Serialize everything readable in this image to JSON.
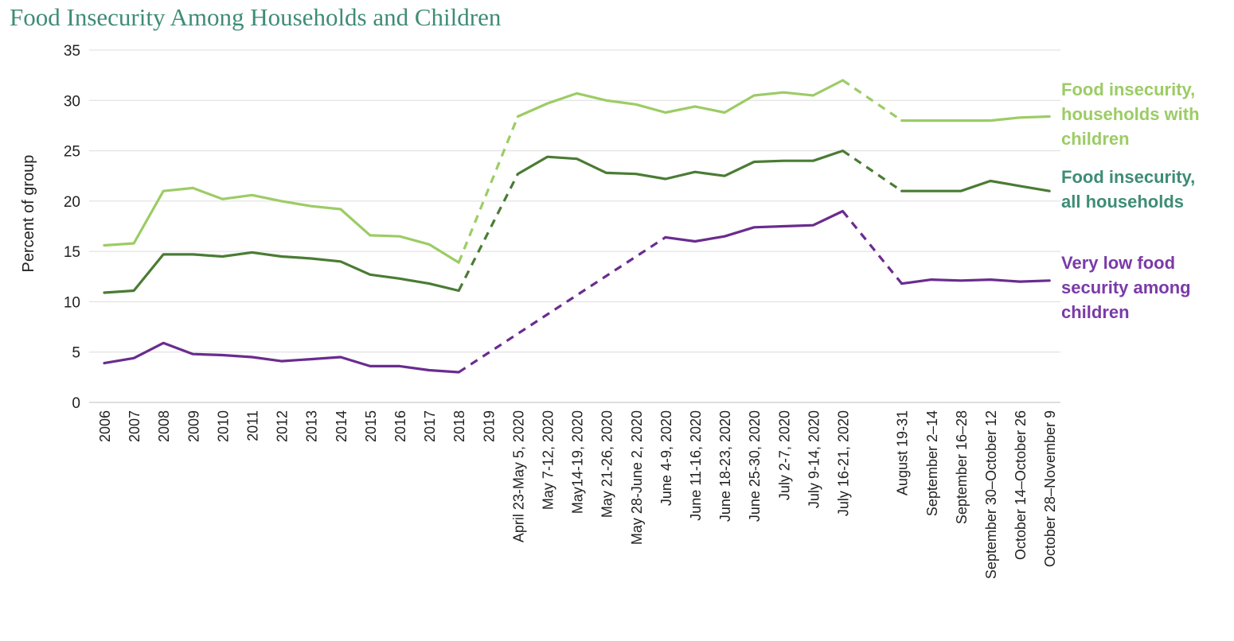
{
  "chart_data": {
    "type": "line",
    "title": "Food Insecurity Among Households and Children",
    "ylabel": "Percent of group",
    "xlabel": "",
    "ylim": [
      0,
      35
    ],
    "yticks": [
      0,
      5,
      10,
      15,
      20,
      25,
      30,
      35
    ],
    "grid": true,
    "legend_placement": "right",
    "categories": [
      "2006",
      "2007",
      "2008",
      "2009",
      "2010",
      "2011",
      "2012",
      "2013",
      "2014",
      "2015",
      "2016",
      "2017",
      "2018",
      "2019",
      "April 23-May 5, 2020",
      "May 7-12, 2020",
      "May14-19, 2020",
      "May 21-26, 2020",
      "May 28-June 2, 2020",
      "June 4-9, 2020",
      "June 11-16, 2020",
      "June 18-23, 2020",
      "June 25-30, 2020",
      "July 2-7, 2020",
      "July 9-14, 2020",
      "July 16-21, 2020",
      "",
      "August 19-31",
      "September 2–14",
      "September 16–28",
      "September 30–October 12",
      "October 14–October 26",
      "October 28–November 9"
    ],
    "series": [
      {
        "name": "Food insecurity, households with children",
        "label_lines": [
          "Food insecurity,",
          "households with",
          "children"
        ],
        "color": "#9ccc65",
        "values": [
          15.6,
          15.8,
          21.0,
          21.3,
          20.2,
          20.6,
          20.0,
          19.5,
          19.2,
          16.6,
          16.5,
          15.7,
          13.9,
          null,
          28.4,
          29.7,
          30.7,
          30.0,
          29.6,
          28.8,
          29.4,
          28.8,
          30.5,
          30.8,
          30.5,
          32.0,
          null,
          28.0,
          28.0,
          28.0,
          28.0,
          28.3,
          28.4
        ]
      },
      {
        "name": "Food insecurity, all households",
        "label_lines": [
          "Food insecurity,",
          "all households"
        ],
        "color": "#4a7c34",
        "label_color": "#3e8c76",
        "values": [
          10.9,
          11.1,
          14.7,
          14.7,
          14.5,
          14.9,
          14.5,
          14.3,
          14.0,
          12.7,
          12.3,
          11.8,
          11.1,
          null,
          22.7,
          24.4,
          24.2,
          22.8,
          22.7,
          22.2,
          22.9,
          22.5,
          23.9,
          24.0,
          24.0,
          25.0,
          null,
          21.0,
          21.0,
          21.0,
          22.0,
          21.5,
          21.0
        ]
      },
      {
        "name": "Very low food security among children",
        "label_lines": [
          "Very low food",
          "security among",
          "children"
        ],
        "color": "#6a2c8e",
        "label_color": "#7b3aa8",
        "values": [
          3.9,
          4.4,
          5.9,
          4.8,
          4.7,
          4.5,
          4.1,
          4.3,
          4.5,
          3.6,
          3.6,
          3.2,
          3.0,
          null,
          null,
          null,
          null,
          null,
          null,
          16.4,
          16.0,
          16.5,
          17.4,
          17.5,
          17.6,
          19.0,
          null,
          11.8,
          12.2,
          12.1,
          12.2,
          12.0,
          12.1
        ]
      }
    ],
    "dashed_segments": "connecting gaps between survey periods"
  }
}
